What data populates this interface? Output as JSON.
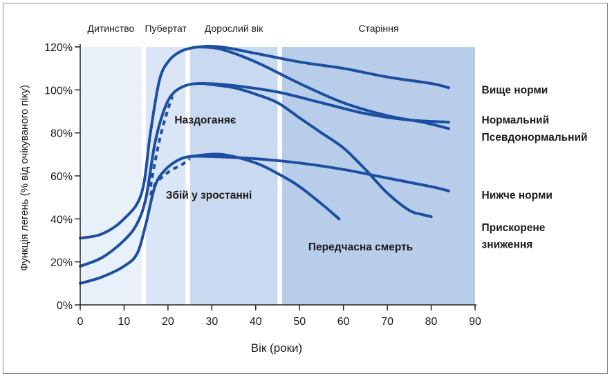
{
  "chart_data": {
    "type": "line",
    "title": "",
    "xlabel": "Вік (роки)",
    "ylabel": "Функція легень (% від очікуваного піку)",
    "xlim": [
      0,
      90
    ],
    "ylim": [
      0,
      120
    ],
    "x_ticks": [
      0,
      10,
      20,
      30,
      40,
      50,
      60,
      70,
      80,
      90
    ],
    "y_ticks": [
      {
        "value": 0,
        "label": "0%"
      },
      {
        "value": 20,
        "label": "20%"
      },
      {
        "value": 40,
        "label": "40%"
      },
      {
        "value": 60,
        "label": "60%"
      },
      {
        "value": 80,
        "label": "80%"
      },
      {
        "value": 100,
        "label": "100%"
      },
      {
        "value": 120,
        "label": "120%"
      }
    ],
    "phases": [
      {
        "label": "Дитинство",
        "start": 0,
        "end": 14,
        "color": "#e8f0fa"
      },
      {
        "label": "Пубертат",
        "start": 15,
        "end": 24,
        "color": "#dae6f6"
      },
      {
        "label": "Дорослий вік",
        "start": 25,
        "end": 45,
        "color": "#c8d9f0"
      },
      {
        "label": "Старіння",
        "start": 46,
        "end": 90,
        "color": "#b7cdea"
      }
    ],
    "series": [
      {
        "name": "Вище норми",
        "style": "solid",
        "points": [
          [
            0,
            31
          ],
          [
            5,
            33
          ],
          [
            10,
            40
          ],
          [
            14,
            52
          ],
          [
            16,
            80
          ],
          [
            18,
            104
          ],
          [
            20,
            113
          ],
          [
            23,
            118
          ],
          [
            27,
            120
          ],
          [
            32,
            120
          ],
          [
            40,
            117
          ],
          [
            50,
            113
          ],
          [
            60,
            110
          ],
          [
            70,
            106
          ],
          [
            80,
            103
          ],
          [
            84,
            101
          ]
        ]
      },
      {
        "name": "Нормальний",
        "style": "solid",
        "points": [
          [
            0,
            18
          ],
          [
            5,
            22
          ],
          [
            10,
            30
          ],
          [
            13,
            38
          ],
          [
            15,
            50
          ],
          [
            17,
            75
          ],
          [
            19,
            90
          ],
          [
            21,
            98
          ],
          [
            24,
            102
          ],
          [
            28,
            103
          ],
          [
            35,
            102
          ],
          [
            45,
            99
          ],
          [
            55,
            94
          ],
          [
            65,
            89
          ],
          [
            75,
            86
          ],
          [
            84,
            85
          ]
        ]
      },
      {
        "name": "Псевдонормальний",
        "style": "solid",
        "points": [
          [
            27,
            120
          ],
          [
            32,
            119
          ],
          [
            40,
            113
          ],
          [
            50,
            103
          ],
          [
            60,
            94
          ],
          [
            70,
            88
          ],
          [
            78,
            85
          ],
          [
            84,
            82
          ]
        ]
      },
      {
        "name": "Нижче норми",
        "style": "solid",
        "points": [
          [
            0,
            10
          ],
          [
            5,
            13
          ],
          [
            10,
            18
          ],
          [
            13,
            24
          ],
          [
            15,
            38
          ],
          [
            17,
            55
          ],
          [
            19,
            62
          ],
          [
            22,
            67
          ],
          [
            25,
            69
          ],
          [
            30,
            69
          ],
          [
            40,
            68
          ],
          [
            50,
            66
          ],
          [
            60,
            63
          ],
          [
            70,
            59
          ],
          [
            80,
            55
          ],
          [
            84,
            53
          ]
        ]
      },
      {
        "name": "Прискорене зниження",
        "style": "solid",
        "points": [
          [
            28,
            103
          ],
          [
            35,
            101
          ],
          [
            40,
            98
          ],
          [
            45,
            94
          ],
          [
            50,
            87
          ],
          [
            55,
            80
          ],
          [
            60,
            73
          ],
          [
            65,
            63
          ],
          [
            70,
            52
          ],
          [
            75,
            44
          ],
          [
            78,
            42
          ],
          [
            80,
            41
          ]
        ]
      },
      {
        "name": "Передчасна смерть",
        "style": "solid",
        "points": [
          [
            25,
            69
          ],
          [
            32,
            70
          ],
          [
            40,
            66
          ],
          [
            46,
            60
          ],
          [
            50,
            55
          ],
          [
            55,
            47
          ],
          [
            59,
            40
          ]
        ]
      },
      {
        "name": "Наздоганяє",
        "style": "dashed",
        "points": [
          [
            16,
            55
          ],
          [
            17,
            66
          ],
          [
            18,
            76
          ],
          [
            19,
            84
          ],
          [
            20,
            91
          ],
          [
            21,
            97
          ]
        ]
      },
      {
        "name": "Збій у зростанні",
        "style": "dashed",
        "points": [
          [
            16,
            51
          ],
          [
            17,
            56
          ],
          [
            19,
            60
          ],
          [
            21,
            63
          ],
          [
            23,
            65
          ],
          [
            25,
            68
          ]
        ]
      }
    ],
    "annotations": [
      {
        "text": "Вище норми",
        "x": 91.5,
        "y": 100,
        "anchor": "start"
      },
      {
        "text": "Нормальний",
        "x": 91.5,
        "y": 86,
        "anchor": "start"
      },
      {
        "text": "Псевдонормальний",
        "x": 91.5,
        "y": 78,
        "anchor": "start"
      },
      {
        "text": "Нижче норми",
        "x": 91.5,
        "y": 51,
        "anchor": "start"
      },
      {
        "text": "Прискорене",
        "x": 91.5,
        "y": 36,
        "anchor": "start"
      },
      {
        "text": "зниження",
        "x": 91.5,
        "y": 28,
        "anchor": "start"
      },
      {
        "text": "Наздоганяє",
        "x": 21.5,
        "y": 86,
        "anchor": "start"
      },
      {
        "text": "Збій у зростанні",
        "x": 19.5,
        "y": 51,
        "anchor": "start"
      },
      {
        "text": "Передчасна смерть",
        "x": 52,
        "y": 27,
        "anchor": "start"
      }
    ],
    "grid": false,
    "line_color": "#1c4fa0"
  }
}
